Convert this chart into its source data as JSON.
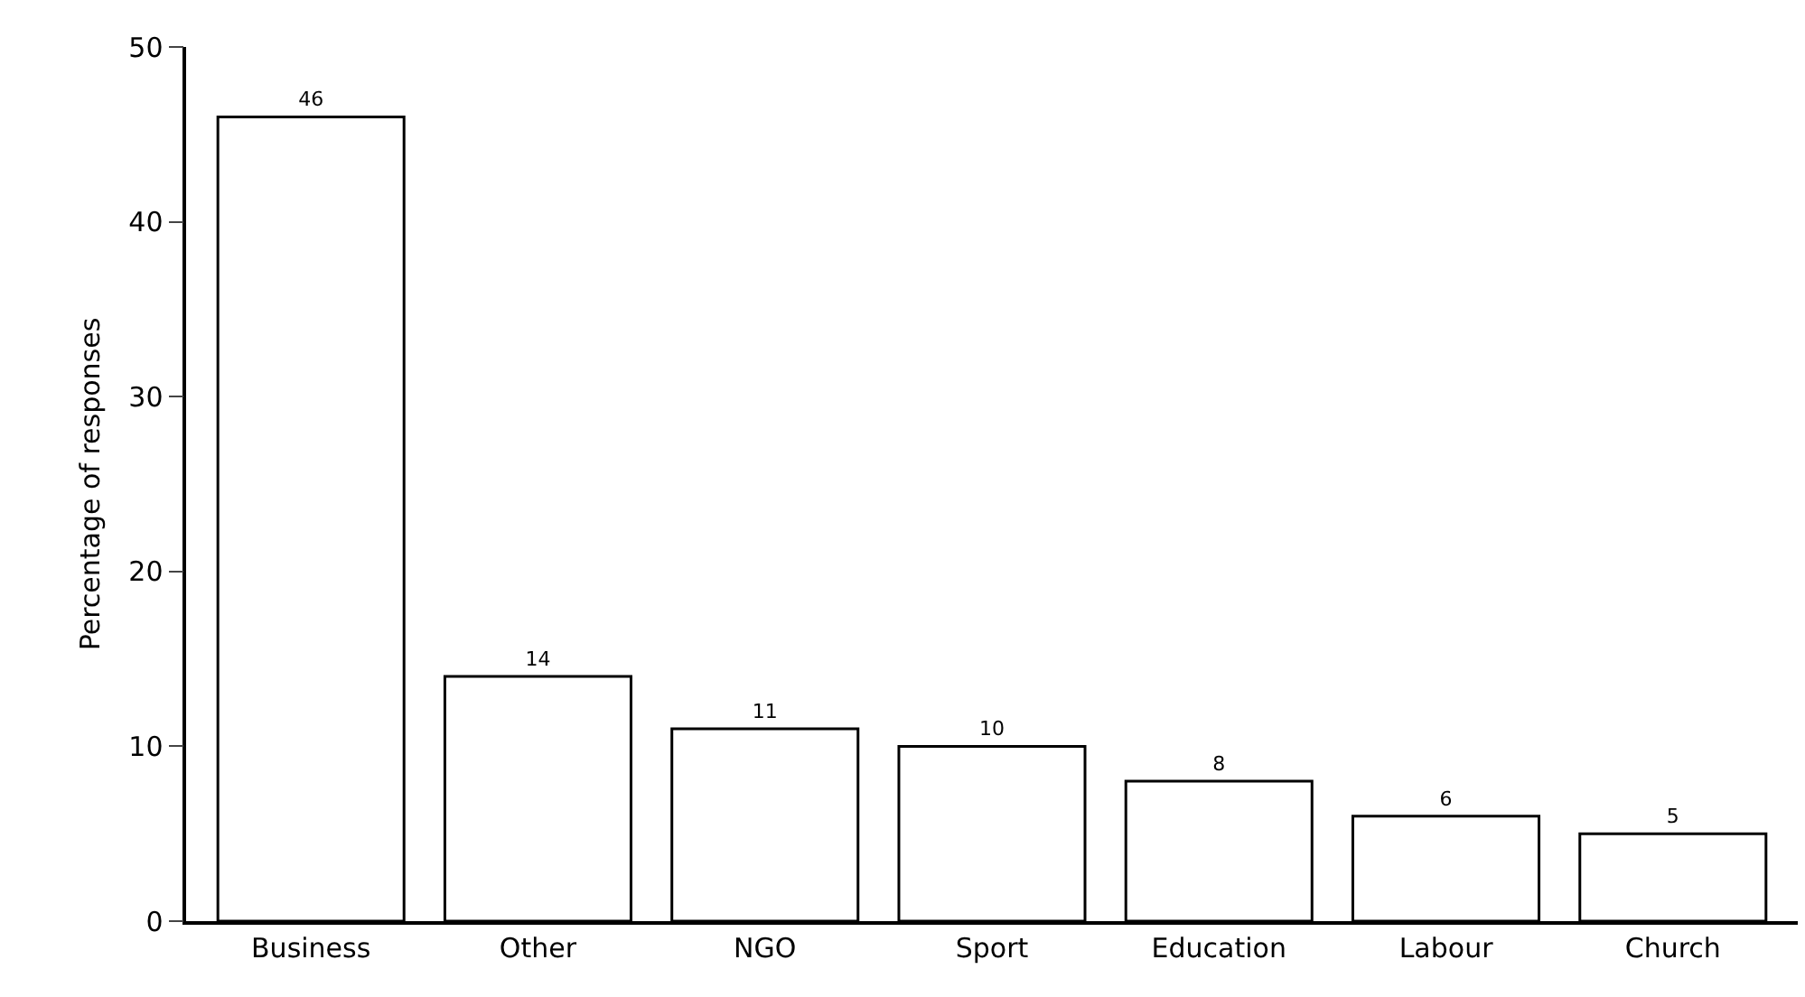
{
  "chart_data": {
    "type": "bar",
    "ylabel": "Percentage of responses",
    "categories": [
      "Business",
      "Other",
      "NGO",
      "Sport",
      "Education",
      "Labour",
      "Church"
    ],
    "values": [
      46,
      14,
      11,
      10,
      8,
      6,
      5
    ],
    "color": "#ffffff",
    "ylim": [
      0,
      50
    ],
    "yticks": [
      0,
      10,
      20,
      30,
      40,
      50
    ],
    "grid": false,
    "data_labels": true
  }
}
